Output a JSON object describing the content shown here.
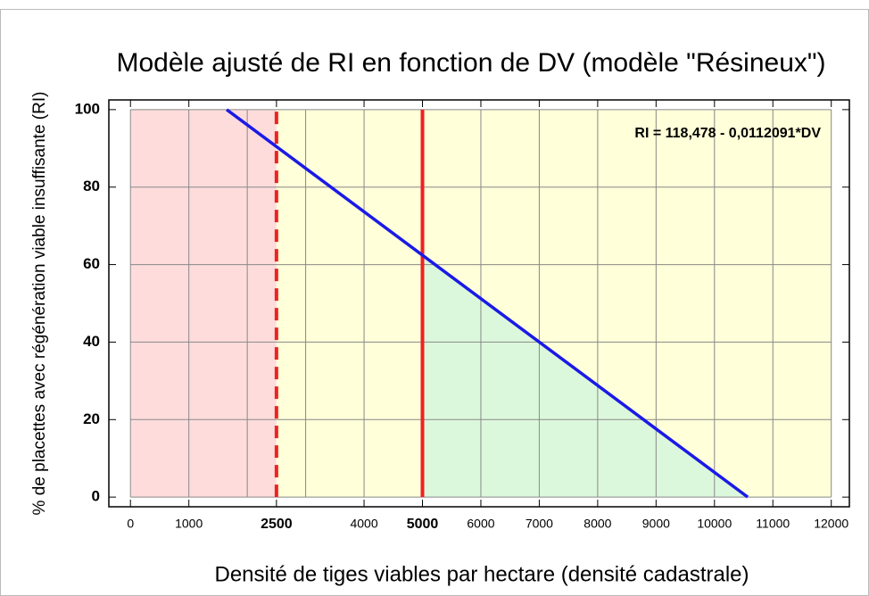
{
  "chart_data": {
    "type": "line",
    "title": "Modèle ajusté de RI en fonction de DV (modèle \"Résineux\")",
    "xlabel": "Densité de tiges viables par hectare (densité cadastrale)",
    "ylabel": "% de placettes avec régénération viable insuffisante (RI)",
    "annotation": "RI = 118,478 - 0,0112091*DV",
    "series": [
      {
        "color": "#1a1ae6",
        "x": [
          1648,
          10570
        ],
        "values": [
          100,
          0
        ]
      }
    ],
    "xlim": [
      -370,
      12310
    ],
    "ylim": [
      -2.5,
      102.5
    ],
    "xticks": [
      0,
      1000,
      2500,
      4000,
      5000,
      6000,
      7000,
      8000,
      9000,
      10000,
      11000,
      12000
    ],
    "xgrid": [
      0,
      1000,
      2000,
      3000,
      4000,
      5000,
      6000,
      7000,
      8000,
      9000,
      10000,
      11000,
      12000
    ],
    "yticks": [
      0,
      20,
      40,
      60,
      80,
      100
    ],
    "ygrid": [
      0,
      20,
      40,
      60,
      80,
      100
    ],
    "regions": [
      {
        "xlim": [
          0,
          2500
        ],
        "ylim": [
          0,
          100
        ],
        "color": "#ffdcdc"
      },
      {
        "xlim": [
          2500,
          12000
        ],
        "ylim": [
          0,
          100
        ],
        "color": "#ffffd9"
      }
    ],
    "below_line_region": {
      "from_x": 5000,
      "color": "#dcf8dc"
    },
    "reference_lines": [
      {
        "x": 2500,
        "color": "#ee2222",
        "dashed": true
      },
      {
        "x": 5000,
        "color": "#ee2222",
        "dashed": false
      }
    ],
    "grid": true
  }
}
